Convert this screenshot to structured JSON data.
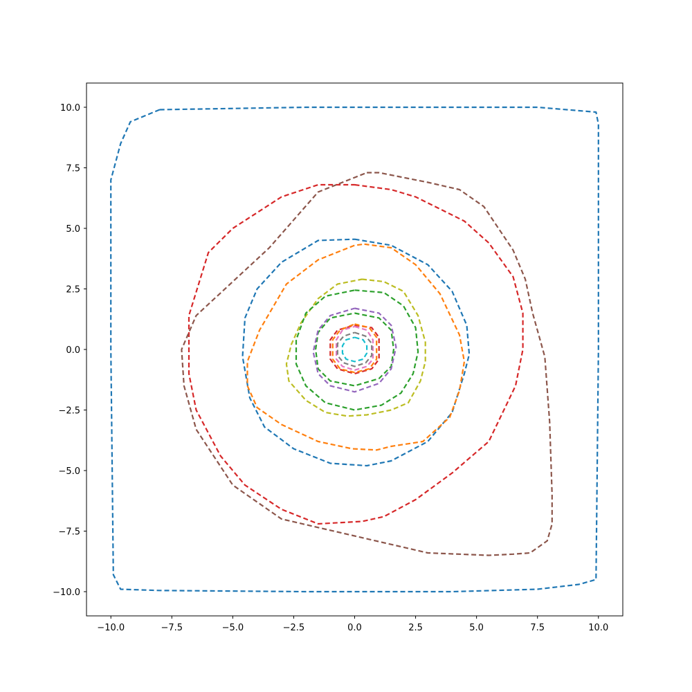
{
  "chart_data": {
    "type": "line",
    "title": "",
    "xlabel": "",
    "ylabel": "",
    "xlim": [
      -11,
      11
    ],
    "ylim": [
      -11,
      11
    ],
    "xticks": [
      -10,
      -7.5,
      -5,
      -2.5,
      0,
      2.5,
      5,
      7.5,
      10
    ],
    "xtick_labels": [
      "−10.0",
      "−7.5",
      "−5.0",
      "−2.5",
      "0.0",
      "2.5",
      "5.0",
      "7.5",
      "10.0"
    ],
    "yticks": [
      -10,
      -7.5,
      -5,
      -2.5,
      0,
      2.5,
      5,
      7.5,
      10
    ],
    "ytick_labels": [
      "−10.0",
      "−7.5",
      "−5.0",
      "−2.5",
      "0.0",
      "2.5",
      "5.0",
      "7.5",
      "10.0"
    ],
    "grid": false,
    "line_style": "dashed",
    "series": [
      {
        "color": "#1f77b4",
        "x": [
          -8.0,
          -2.0,
          4.0,
          7.5,
          9.9,
          10.0,
          10.0,
          9.9,
          9.2,
          7.5,
          4.0,
          -2.0,
          -8.0,
          -9.6,
          -9.9,
          -10.0,
          -10.0,
          -9.6,
          -9.2,
          -8.0
        ],
        "y": [
          9.9,
          10.0,
          10.0,
          10.0,
          9.8,
          9.3,
          0.0,
          -9.5,
          -9.7,
          -9.9,
          -10.0,
          -10.0,
          -9.95,
          -9.9,
          -9.3,
          0.0,
          7.0,
          8.5,
          9.4,
          9.9
        ]
      },
      {
        "color": "#d62728",
        "x": [
          0.0,
          1.5,
          2.5,
          3.5,
          4.5,
          5.5,
          6.5,
          6.9,
          6.9,
          6.6,
          5.5,
          4.0,
          2.5,
          1.2,
          0.3,
          -1.5,
          -3.0,
          -4.5,
          -5.5,
          -6.5,
          -6.8,
          -6.8,
          -6.0,
          -5.0,
          -3.0,
          -1.5,
          0.0
        ],
        "y": [
          6.8,
          6.6,
          6.3,
          5.8,
          5.3,
          4.4,
          3.0,
          1.5,
          0.0,
          -1.5,
          -3.8,
          -5.1,
          -6.2,
          -6.9,
          -7.1,
          -7.2,
          -6.6,
          -5.6,
          -4.4,
          -2.5,
          -1.0,
          1.4,
          4.0,
          5.0,
          6.3,
          6.8,
          6.8
        ]
      },
      {
        "color": "#8c564b",
        "x": [
          0.5,
          1.0,
          2.0,
          3.0,
          4.3,
          5.3,
          6.5,
          7.0,
          7.3,
          7.8,
          8.0,
          8.1,
          8.1,
          7.9,
          7.2,
          6.5,
          5.5,
          3.0,
          0.0,
          -3.0,
          -5.0,
          -6.5,
          -7.0,
          -7.1,
          -6.5,
          -5.0,
          -3.5,
          -1.5,
          0.5
        ],
        "y": [
          7.3,
          7.3,
          7.1,
          6.9,
          6.6,
          5.9,
          4.1,
          2.9,
          1.5,
          -0.3,
          -3.0,
          -6.0,
          -7.2,
          -7.9,
          -8.4,
          -8.45,
          -8.5,
          -8.4,
          -7.7,
          -7.0,
          -5.6,
          -3.3,
          -1.5,
          0.0,
          1.4,
          2.8,
          4.2,
          6.5,
          7.3
        ]
      },
      {
        "color": "#1f77b4",
        "x": [
          0.0,
          1.5,
          3.0,
          4.0,
          4.6,
          4.7,
          4.5,
          4.0,
          3.0,
          1.5,
          0.5,
          -1.0,
          -2.5,
          -3.7,
          -4.3,
          -4.6,
          -4.5,
          -4.0,
          -3.0,
          -1.5,
          0.0
        ],
        "y": [
          4.55,
          4.3,
          3.5,
          2.4,
          1.0,
          -0.2,
          -1.0,
          -2.6,
          -3.8,
          -4.6,
          -4.8,
          -4.7,
          -4.1,
          -3.2,
          -2.0,
          -0.3,
          1.3,
          2.5,
          3.6,
          4.5,
          4.55
        ]
      },
      {
        "color": "#ff7f0e",
        "x": [
          0.4,
          1.5,
          2.5,
          3.5,
          4.3,
          4.5,
          4.3,
          3.9,
          2.8,
          1.5,
          0.9,
          -0.1,
          -1.5,
          -3.0,
          -4.0,
          -4.4,
          -4.4,
          -3.9,
          -2.8,
          -1.5,
          0.0,
          0.4
        ],
        "y": [
          4.35,
          4.2,
          3.5,
          2.3,
          0.6,
          -0.5,
          -1.7,
          -2.8,
          -3.8,
          -4.0,
          -4.15,
          -4.1,
          -3.8,
          -3.1,
          -2.4,
          -1.5,
          -0.5,
          0.8,
          2.7,
          3.7,
          4.3,
          4.35
        ]
      },
      {
        "color": "#bcbd22",
        "x": [
          0.3,
          1.2,
          2.0,
          2.6,
          2.9,
          2.9,
          2.7,
          2.2,
          1.5,
          0.5,
          -0.3,
          -1.2,
          -2.0,
          -2.7,
          -2.8,
          -2.6,
          -2.2,
          -1.5,
          -0.7,
          0.3
        ],
        "y": [
          2.9,
          2.8,
          2.4,
          1.4,
          0.3,
          -0.5,
          -1.3,
          -2.2,
          -2.5,
          -2.7,
          -2.75,
          -2.6,
          -2.1,
          -1.3,
          -0.6,
          0.2,
          1.1,
          2.1,
          2.7,
          2.9
        ]
      },
      {
        "color": "#2ca02c",
        "x": [
          0.0,
          1.2,
          2.0,
          2.5,
          2.6,
          2.4,
          1.9,
          1.1,
          0.0,
          -1.2,
          -2.0,
          -2.4,
          -2.4,
          -2.0,
          -1.2,
          0.0
        ],
        "y": [
          2.45,
          2.35,
          1.8,
          0.9,
          -0.1,
          -1.0,
          -1.8,
          -2.3,
          -2.5,
          -2.2,
          -1.5,
          -0.6,
          0.4,
          1.5,
          2.2,
          2.45
        ]
      },
      {
        "color": "#2ca02c",
        "x": [
          0.0,
          1.0,
          1.5,
          1.6,
          1.5,
          1.0,
          0.0,
          -1.0,
          -1.5,
          -1.6,
          -1.5,
          -1.0,
          0.0
        ],
        "y": [
          1.5,
          1.3,
          0.8,
          0.0,
          -0.7,
          -1.2,
          -1.5,
          -1.3,
          -0.8,
          0.0,
          0.7,
          1.3,
          1.5
        ]
      },
      {
        "color": "#9467bd",
        "x": [
          0.0,
          1.0,
          1.5,
          1.7,
          1.5,
          1.0,
          0.0,
          -1.0,
          -1.5,
          -1.7,
          -1.5,
          -1.0,
          0.0
        ],
        "y": [
          1.7,
          1.5,
          1.0,
          0.1,
          -0.8,
          -1.4,
          -1.75,
          -1.5,
          -1.0,
          -0.1,
          0.8,
          1.4,
          1.7
        ]
      },
      {
        "color": "#d62728",
        "x": [
          0.0,
          0.7,
          1.0,
          1.0,
          0.7,
          0.0,
          -0.7,
          -1.0,
          -1.0,
          -0.7,
          0.0
        ],
        "y": [
          1.0,
          0.9,
          0.5,
          -0.4,
          -0.8,
          -1.0,
          -0.8,
          -0.4,
          0.4,
          0.8,
          1.0
        ]
      },
      {
        "color": "#ff7f0e",
        "x": [
          0.0,
          0.6,
          0.9,
          0.9,
          0.6,
          0.0,
          -0.6,
          -0.9,
          -0.9,
          -0.6,
          0.0
        ],
        "y": [
          1.05,
          0.9,
          0.5,
          -0.4,
          -0.8,
          -0.95,
          -0.8,
          -0.4,
          0.4,
          0.8,
          1.05
        ]
      },
      {
        "color": "#e377c2",
        "x": [
          0.0,
          0.5,
          0.75,
          0.75,
          0.5,
          0.0,
          -0.5,
          -0.75,
          -0.75,
          -0.5,
          0.0
        ],
        "y": [
          0.95,
          0.8,
          0.4,
          -0.4,
          -0.7,
          -0.85,
          -0.7,
          -0.4,
          0.4,
          0.8,
          0.95
        ]
      },
      {
        "color": "#7f7f7f",
        "x": [
          0.0,
          0.45,
          0.7,
          0.7,
          0.45,
          0.0,
          -0.45,
          -0.7,
          -0.7,
          -0.45,
          0.0
        ],
        "y": [
          0.7,
          0.55,
          0.25,
          -0.25,
          -0.55,
          -0.7,
          -0.55,
          -0.25,
          0.25,
          0.55,
          0.7
        ]
      },
      {
        "color": "#17becf",
        "x": [
          0.0,
          0.35,
          0.5,
          0.5,
          0.35,
          0.0,
          -0.35,
          -0.5,
          -0.5,
          -0.35,
          0.0
        ],
        "y": [
          0.5,
          0.4,
          0.15,
          -0.15,
          -0.4,
          -0.5,
          -0.4,
          -0.15,
          0.15,
          0.4,
          0.5
        ]
      }
    ]
  }
}
